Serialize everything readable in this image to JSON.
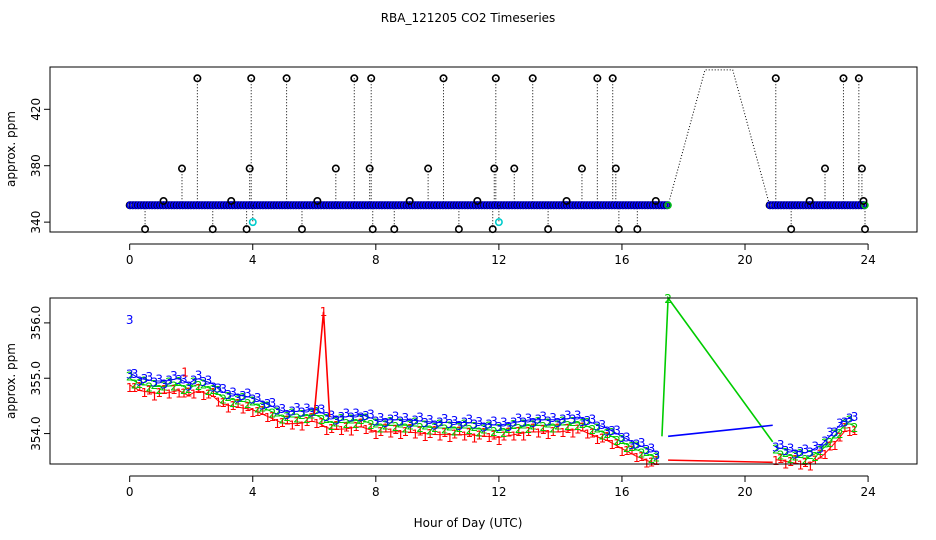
{
  "chart_data": [
    {
      "type": "scatter",
      "title": "RBA_121205  CO2 Timeseries",
      "xlabel": "",
      "ylabel": "approx. ppm",
      "xlim": [
        -2.2,
        25.2
      ],
      "ylim": [
        333,
        450
      ],
      "x_ticks": [
        0,
        4,
        8,
        12,
        16,
        20,
        24
      ],
      "y_ticks": [
        340,
        380,
        420
      ],
      "colors": {
        "raw": "#000000",
        "avg": "#0000ff",
        "cal": "#00cc00",
        "flag": "#00cccc",
        "red": "#ff0000"
      },
      "baseline": [
        {
          "t0": 0.0,
          "t1": 17.5,
          "v": 352
        },
        {
          "t0": 20.8,
          "t1": 23.9,
          "v": 352
        }
      ],
      "gap_line": [
        [
          17.5,
          352
        ],
        [
          18.7,
          448
        ],
        [
          19.6,
          448
        ],
        [
          20.8,
          352
        ]
      ],
      "spikes": [
        [
          0.5,
          335
        ],
        [
          1.1,
          355
        ],
        [
          1.7,
          378
        ],
        [
          2.2,
          442
        ],
        [
          2.7,
          335
        ],
        [
          3.3,
          355
        ],
        [
          3.8,
          335
        ],
        [
          3.9,
          378
        ],
        [
          3.95,
          442
        ],
        [
          5.1,
          442
        ],
        [
          5.6,
          335
        ],
        [
          6.1,
          355
        ],
        [
          6.7,
          378
        ],
        [
          7.3,
          442
        ],
        [
          7.8,
          378
        ],
        [
          7.85,
          442
        ],
        [
          7.9,
          335
        ],
        [
          8.6,
          335
        ],
        [
          9.1,
          355
        ],
        [
          9.7,
          378
        ],
        [
          10.2,
          442
        ],
        [
          10.7,
          335
        ],
        [
          11.3,
          355
        ],
        [
          11.8,
          335
        ],
        [
          11.85,
          378
        ],
        [
          11.9,
          442
        ],
        [
          12.5,
          378
        ],
        [
          13.1,
          442
        ],
        [
          13.6,
          335
        ],
        [
          14.2,
          355
        ],
        [
          14.7,
          378
        ],
        [
          15.2,
          442
        ],
        [
          15.7,
          442
        ],
        [
          15.8,
          378
        ],
        [
          15.9,
          335
        ],
        [
          16.5,
          335
        ],
        [
          17.1,
          355
        ],
        [
          21.0,
          442
        ],
        [
          21.5,
          335
        ],
        [
          22.1,
          355
        ],
        [
          22.6,
          378
        ],
        [
          23.2,
          442
        ],
        [
          23.7,
          442
        ],
        [
          23.8,
          378
        ],
        [
          23.85,
          355
        ],
        [
          23.9,
          335
        ]
      ],
      "flags": [
        [
          4.0,
          340
        ],
        [
          12.0,
          340
        ]
      ]
    },
    {
      "type": "line",
      "title": "",
      "xlabel": "Hour of Day (UTC)",
      "ylabel": "approx. ppm",
      "xlim": [
        -2.2,
        25.2
      ],
      "ylim": [
        353.45,
        356.45
      ],
      "x_ticks": [
        0,
        4,
        8,
        12,
        16,
        20,
        24
      ],
      "y_ticks": [
        354.0,
        355.0,
        356.0
      ],
      "y_tick_labels": [
        "354.0",
        "355.0",
        "356.0"
      ],
      "series": [
        {
          "name": "1",
          "color": "#ff0000",
          "offset": -0.22
        },
        {
          "name": "2",
          "color": "#00cc00",
          "offset": -0.1
        },
        {
          "name": "3",
          "color": "#0000ff",
          "offset": 0.0
        }
      ],
      "trend": [
        [
          0.0,
          355.1
        ],
        [
          0.3,
          355.0
        ],
        [
          0.8,
          354.95
        ],
        [
          1.2,
          354.95
        ],
        [
          1.6,
          355.0
        ],
        [
          1.9,
          354.9
        ],
        [
          2.2,
          355.0
        ],
        [
          2.7,
          354.9
        ],
        [
          3.0,
          354.75
        ],
        [
          3.5,
          354.7
        ],
        [
          4.0,
          354.65
        ],
        [
          4.4,
          354.55
        ],
        [
          5.0,
          354.4
        ],
        [
          5.5,
          354.4
        ],
        [
          6.0,
          354.45
        ],
        [
          6.5,
          354.3
        ],
        [
          7.0,
          354.3
        ],
        [
          7.5,
          354.35
        ],
        [
          8.0,
          354.25
        ],
        [
          9.0,
          354.25
        ],
        [
          10.0,
          354.2
        ],
        [
          11.0,
          354.2
        ],
        [
          12.0,
          354.15
        ],
        [
          13.0,
          354.25
        ],
        [
          14.0,
          354.25
        ],
        [
          14.6,
          354.3
        ],
        [
          15.0,
          354.2
        ],
        [
          15.5,
          354.1
        ],
        [
          16.0,
          353.95
        ],
        [
          16.5,
          353.8
        ],
        [
          17.2,
          353.65
        ],
        [
          21.0,
          353.75
        ],
        [
          21.5,
          353.7
        ],
        [
          22.0,
          353.65
        ],
        [
          22.5,
          353.8
        ],
        [
          23.0,
          354.1
        ],
        [
          23.3,
          354.3
        ],
        [
          23.7,
          354.2
        ]
      ],
      "fill_step": 0.16,
      "red_spike": {
        "x": [
          6.0,
          6.3,
          6.5
        ],
        "y": [
          354.35,
          356.2,
          354.3
        ],
        "label": "1"
      },
      "green_spike": {
        "x": [
          17.3,
          17.5,
          20.9
        ],
        "y": [
          353.95,
          356.45,
          353.85
        ],
        "label": "2"
      },
      "blue_gap": {
        "x": [
          17.5,
          20.9
        ],
        "y": [
          353.95,
          354.15
        ]
      },
      "red_gap": {
        "x": [
          17.5,
          20.9
        ],
        "y": [
          353.52,
          353.48
        ]
      },
      "isolated_labels": [
        {
          "name": "3",
          "x": 0.0,
          "y": 356.05
        },
        {
          "name": "1",
          "x": 1.8,
          "y": 355.1
        }
      ]
    }
  ]
}
